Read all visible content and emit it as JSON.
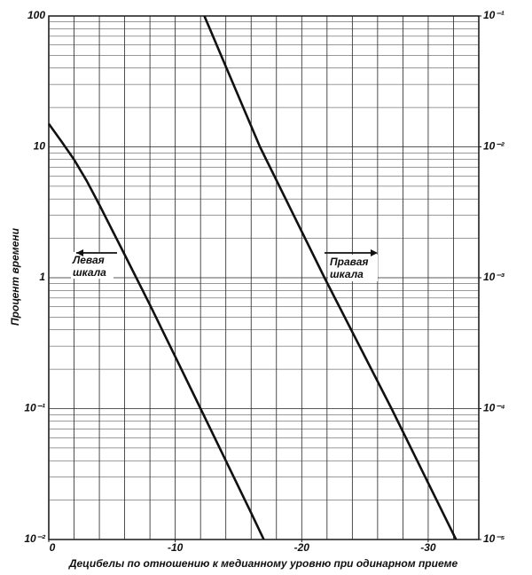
{
  "chart_data": {
    "type": "line",
    "x_label": "Децибелы по отношению к медианному уровню при одинарном приеме",
    "y_label": "Процент времени",
    "annotations": {
      "left": [
        "Левая",
        "шкала"
      ],
      "right": [
        "Правая",
        "шкала"
      ]
    },
    "log_y": true,
    "grid": true,
    "xlim": [
      0,
      -34
    ],
    "xticks": [
      0,
      -10,
      -20,
      -30
    ],
    "xgrid": [
      -2,
      -4,
      -6,
      -8,
      -10,
      -12,
      -14,
      -16,
      -18,
      -20,
      -22,
      -24,
      -26,
      -28,
      -30,
      -32
    ],
    "ylim": [
      0.01,
      100
    ],
    "yticks": [
      {
        "value": 0.01,
        "label": "10⁻²"
      },
      {
        "value": 0.1,
        "label": "10⁻¹"
      },
      1,
      10,
      100
    ],
    "yminor": [
      0.02,
      0.03,
      0.04,
      0.05,
      0.06,
      0.07,
      0.08,
      0.09,
      0.2,
      0.3,
      0.4,
      0.5,
      0.6,
      0.7,
      0.8,
      0.9,
      2,
      3,
      4,
      5,
      6,
      7,
      8,
      9,
      20,
      30,
      40,
      50,
      60,
      70,
      80,
      90
    ],
    "y2lim": [
      1e-05,
      0.1
    ],
    "y2ticks": [
      {
        "value": 1e-05,
        "label": "10⁻⁵"
      },
      {
        "value": 0.0001,
        "label": "10⁻⁴"
      },
      {
        "value": 0.001,
        "label": "10⁻³"
      },
      {
        "value": 0.01,
        "label": "10⁻²"
      },
      {
        "value": 0.1,
        "label": "10⁻¹"
      }
    ],
    "series": [
      {
        "color": "#111111",
        "x": [
          0,
          -1,
          -2,
          -3,
          -4,
          -6,
          -8,
          -10,
          -12,
          -14,
          -16,
          -17
        ],
        "values": [
          15,
          11,
          8,
          5.5,
          3.6,
          1.5,
          0.62,
          0.25,
          0.1,
          0.04,
          0.016,
          0.01
        ]
      },
      {
        "color": "#111111",
        "axis": "y2",
        "x": [
          -12.3,
          -16.7,
          -21.8,
          -27.1,
          -32.2
        ],
        "values": [
          0.1,
          0.01,
          0.001,
          0.0001,
          1e-05
        ]
      }
    ]
  }
}
